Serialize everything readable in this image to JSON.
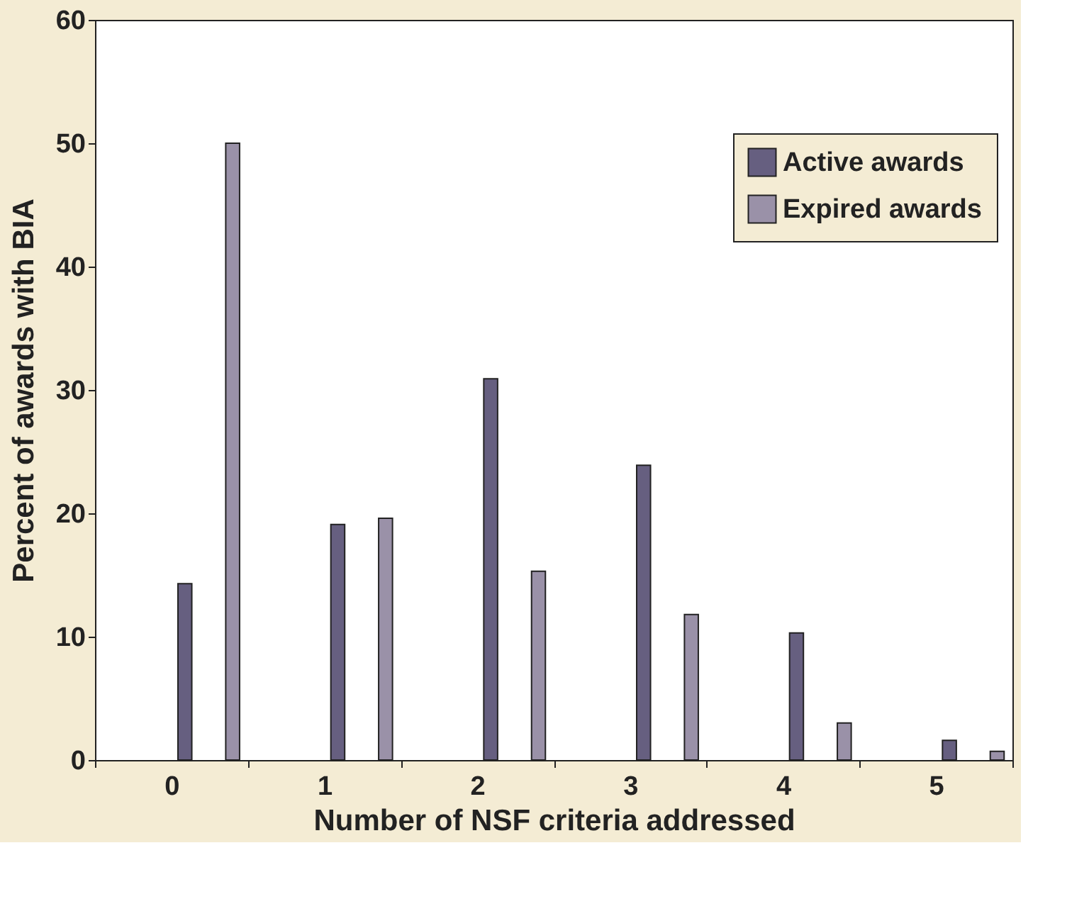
{
  "chart_data": {
    "type": "bar",
    "xlabel": "Number of NSF criteria addressed",
    "ylabel": "Percent of awards with BIA",
    "categories": [
      "0",
      "1",
      "2",
      "3",
      "4",
      "5"
    ],
    "series": [
      {
        "name": "Active awards",
        "color": "#665f80",
        "values": [
          14.3,
          19.1,
          30.9,
          23.9,
          10.3,
          1.6
        ]
      },
      {
        "name": "Expired awards",
        "color": "#9a91a8",
        "values": [
          50.0,
          19.6,
          15.3,
          11.8,
          3.0,
          0.7
        ]
      }
    ],
    "ylim": [
      0,
      60
    ],
    "yticks": [
      0,
      10,
      20,
      30,
      40,
      50,
      60
    ],
    "grid": false,
    "legend": "top right"
  }
}
